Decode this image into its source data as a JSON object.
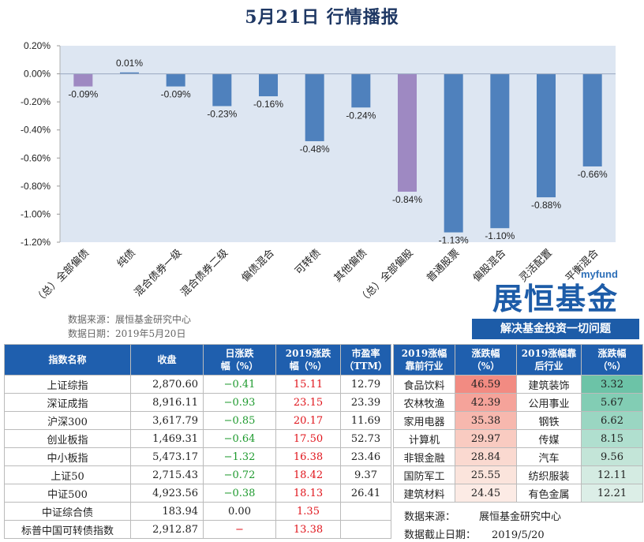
{
  "title": "5月21日  行情播报",
  "source_lines": [
    "数据来源：展恒基金研究中心",
    "数据日期：2019年5月20日"
  ],
  "brand": {
    "small": "myfund",
    "main": "展恒基金",
    "slogan": "解决基金投资一切问题"
  },
  "colors": {
    "bar_blue": "#4f81bd",
    "bar_purple": "#9e89c2",
    "plot_bg": "#dde6f2",
    "header_blue": "#1f5fae"
  },
  "chart_data": {
    "type": "bar",
    "categories": [
      "（总）全部偏债",
      "纯债",
      "混合债券一级",
      "混合债券二级",
      "偏债混合",
      "可转债",
      "其他偏债",
      "（总）全部偏股",
      "普通股票",
      "偏股混合",
      "灵活配置",
      "平衡混合"
    ],
    "values": [
      -0.09,
      0.01,
      -0.09,
      -0.23,
      -0.16,
      -0.48,
      -0.24,
      -0.84,
      -1.13,
      -1.1,
      -0.88,
      -0.66
    ],
    "value_labels": [
      "-0.09%",
      "0.01%",
      "-0.09%",
      "-0.23%",
      "-0.16%",
      "-0.48%",
      "-0.24%",
      "-0.84%",
      "-1.13%",
      "-1.10%",
      "-0.88%",
      "-0.66%"
    ],
    "highlighted": [
      true,
      false,
      false,
      false,
      false,
      false,
      false,
      true,
      false,
      false,
      false,
      false
    ],
    "ylim": [
      -1.2,
      0.2
    ],
    "yticks": [
      0.2,
      0.0,
      -0.2,
      -0.4,
      -0.6,
      -0.8,
      -1.0,
      -1.2
    ],
    "ytick_labels": [
      "0.20%",
      "0.00%",
      "-0.20%",
      "-0.40%",
      "-0.60%",
      "-0.80%",
      "-1.00%",
      "-1.20%"
    ],
    "grid": false,
    "legend": "none"
  },
  "index_table": {
    "headers": [
      "指数名称",
      "收盘",
      "日涨跌幅（%）",
      "2019涨跌幅（%）",
      "市盈率（TTM）"
    ],
    "header_lines": [
      [
        "指数名称"
      ],
      [
        "收盘"
      ],
      [
        "日涨跌",
        "幅（%）"
      ],
      [
        "2019涨跌",
        "幅（%）"
      ],
      [
        "市盈率",
        "（TTM）"
      ]
    ],
    "rows": [
      {
        "name": "上证综指",
        "close": "2,870.60",
        "day": "−0.41",
        "ytd": "15.11",
        "pe": "12.79"
      },
      {
        "name": "深证成指",
        "close": "8,916.11",
        "day": "−0.93",
        "ytd": "23.15",
        "pe": "23.39"
      },
      {
        "name": "沪深300",
        "close": "3,617.79",
        "day": "−0.85",
        "ytd": "20.17",
        "pe": "11.69"
      },
      {
        "name": "创业板指",
        "close": "1,469.31",
        "day": "−0.64",
        "ytd": "17.50",
        "pe": "52.73"
      },
      {
        "name": "中小板指",
        "close": "5,473.17",
        "day": "−1.32",
        "ytd": "16.38",
        "pe": "23.46"
      },
      {
        "name": "上证50",
        "close": "2,715.43",
        "day": "−0.72",
        "ytd": "18.42",
        "pe": "9.37"
      },
      {
        "name": "中证500",
        "close": "4,923.56",
        "day": "−0.38",
        "ytd": "18.13",
        "pe": "26.41"
      },
      {
        "name": "中证综合债",
        "close": "183.94",
        "day": "0.00",
        "ytd": "1.35",
        "pe": ""
      },
      {
        "name": "标普中国可转债指数",
        "close": "2,912.87",
        "day": "−",
        "ytd": "13.38",
        "pe": ""
      }
    ]
  },
  "industry_table": {
    "headers": [
      "2019涨幅靠前行业",
      "涨跌幅（%）",
      "2019涨幅靠后行业",
      "涨跌幅（%）"
    ],
    "header_lines": [
      [
        "2019涨幅",
        "靠前行业"
      ],
      [
        "涨跌幅",
        "（%）"
      ],
      [
        "2019涨幅靠",
        "后行业"
      ],
      [
        "涨跌幅",
        "（%）"
      ]
    ],
    "rows": [
      {
        "top": "食品饮料",
        "top_val": "46.59",
        "bottom": "建筑装饰",
        "bottom_val": "3.32"
      },
      {
        "top": "农林牧渔",
        "top_val": "42.39",
        "bottom": "公用事业",
        "bottom_val": "5.67"
      },
      {
        "top": "家用电器",
        "top_val": "35.38",
        "bottom": "钢铁",
        "bottom_val": "6.62"
      },
      {
        "top": "计算机",
        "top_val": "29.97",
        "bottom": "传媒",
        "bottom_val": "8.15"
      },
      {
        "top": "非银金融",
        "top_val": "28.84",
        "bottom": "汽车",
        "bottom_val": "9.56"
      },
      {
        "top": "国防军工",
        "top_val": "25.55",
        "bottom": "纺织服装",
        "bottom_val": "12.11"
      },
      {
        "top": "建筑材料",
        "top_val": "24.45",
        "bottom": "有色金属",
        "bottom_val": "12.21"
      }
    ],
    "top_colors": [
      "#f28b82",
      "#f5a39a",
      "#f7b8ae",
      "#f9cbc1",
      "#fad9d0",
      "#fbe4dc",
      "#fcebe5"
    ],
    "bottom_colors": [
      "#6cc3a7",
      "#82cdb4",
      "#9ad6c2",
      "#b0dfcf",
      "#c3e5d8",
      "#d4ebe2",
      "#dceee7"
    ],
    "footer": [
      {
        "label": "数据来源：",
        "value": "展恒基金研究中心"
      },
      {
        "label": "数据截止日期：",
        "value": "2019/5/20"
      }
    ]
  }
}
